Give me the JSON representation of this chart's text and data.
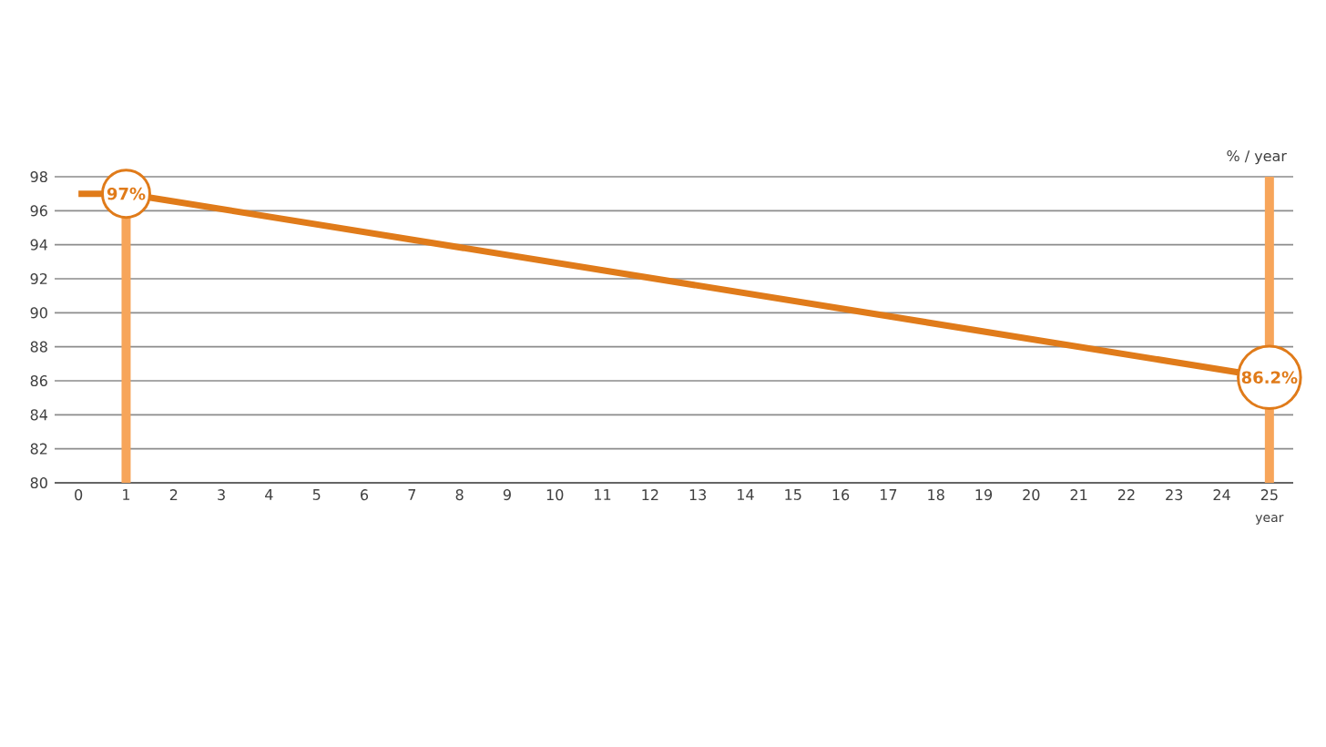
{
  "chart_data": {
    "type": "line",
    "xlabel": "year",
    "ylabel": "% / year",
    "x": [
      0,
      1,
      25
    ],
    "series": [
      {
        "color": "#e07b1a",
        "values": [
          97,
          97,
          86.2
        ]
      }
    ],
    "xlim": [
      -0.5,
      25.5
    ],
    "ylim": [
      80,
      98
    ],
    "xticks": [
      0,
      1,
      2,
      3,
      4,
      5,
      6,
      7,
      8,
      9,
      10,
      11,
      12,
      13,
      14,
      15,
      16,
      17,
      18,
      19,
      20,
      21,
      22,
      23,
      24,
      25
    ],
    "yticks": [
      80,
      82,
      84,
      86,
      88,
      90,
      92,
      94,
      96,
      98
    ],
    "grid": "y",
    "marker": "none",
    "line_style": "solid",
    "annotations": [
      {
        "text": "97%",
        "x": 1,
        "y": 97
      },
      {
        "text": "86.2%",
        "x": 25,
        "y": 86.2
      }
    ],
    "ref_lines": [
      {
        "axis": "x",
        "value": 1,
        "color": "#f7a55a"
      },
      {
        "axis": "x",
        "value": 25,
        "color": "#f7a55a"
      }
    ]
  }
}
